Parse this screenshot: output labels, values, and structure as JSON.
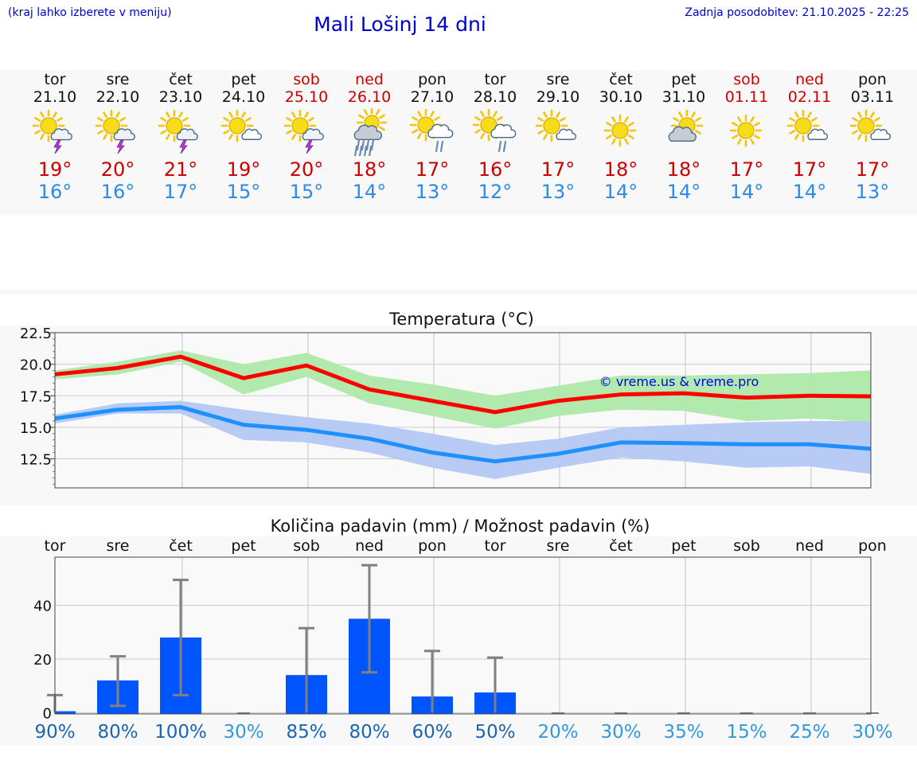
{
  "header": {
    "left_note": "(kraj lahko izberete v meniju)",
    "title": "Mali Lošinj 14 dni",
    "updated": "Zadnja posodobitev: 21.10.2025 - 22:25"
  },
  "days": [
    {
      "name": "tor",
      "date": "21.10",
      "weekend": false,
      "icon": "sun-cloud-lightning-icon",
      "tmax": "19°",
      "tmin": "16°"
    },
    {
      "name": "sre",
      "date": "22.10",
      "weekend": false,
      "icon": "sun-cloud-lightning-icon",
      "tmax": "20°",
      "tmin": "16°"
    },
    {
      "name": "čet",
      "date": "23.10",
      "weekend": false,
      "icon": "sun-cloud-lightning-icon",
      "tmax": "21°",
      "tmin": "17°"
    },
    {
      "name": "pet",
      "date": "24.10",
      "weekend": false,
      "icon": "sun-small-cloud-icon",
      "tmax": "19°",
      "tmin": "15°"
    },
    {
      "name": "sob",
      "date": "25.10",
      "weekend": true,
      "icon": "sun-cloud-lightning-icon",
      "tmax": "20°",
      "tmin": "15°"
    },
    {
      "name": "ned",
      "date": "26.10",
      "weekend": true,
      "icon": "cloud-heavy-rain-icon",
      "tmax": "18°",
      "tmin": "14°"
    },
    {
      "name": "pon",
      "date": "27.10",
      "weekend": false,
      "icon": "sun-cloud-rain-icon",
      "tmax": "17°",
      "tmin": "13°"
    },
    {
      "name": "tor",
      "date": "28.10",
      "weekend": false,
      "icon": "sun-cloud-rain-icon",
      "tmax": "16°",
      "tmin": "12°"
    },
    {
      "name": "sre",
      "date": "29.10",
      "weekend": false,
      "icon": "sun-small-cloud-icon",
      "tmax": "17°",
      "tmin": "13°"
    },
    {
      "name": "čet",
      "date": "30.10",
      "weekend": false,
      "icon": "sun-icon",
      "tmax": "18°",
      "tmin": "14°"
    },
    {
      "name": "pet",
      "date": "31.10",
      "weekend": false,
      "icon": "sun-behind-cloud-icon",
      "tmax": "18°",
      "tmin": "14°"
    },
    {
      "name": "sob",
      "date": "01.11",
      "weekend": true,
      "icon": "sun-icon",
      "tmax": "17°",
      "tmin": "14°"
    },
    {
      "name": "ned",
      "date": "02.11",
      "weekend": true,
      "icon": "sun-small-cloud-icon",
      "tmax": "17°",
      "tmin": "14°"
    },
    {
      "name": "pon",
      "date": "03.11",
      "weekend": false,
      "icon": "sun-small-cloud-icon",
      "tmax": "17°",
      "tmin": "13°"
    }
  ],
  "colors": {
    "max_line": "#ff0000",
    "max_band": "#aee8a8",
    "min_line": "#1e90ff",
    "min_band": "#b4c8f4",
    "precip_bar": "#0055ff",
    "error_bar": "#808080",
    "grid": "#cccccc",
    "plot_bg": "#f9f9f9",
    "prob_high": "#1a66b3",
    "prob_low": "#3399dd"
  },
  "chart_data": [
    {
      "type": "line",
      "title": "Temperatura (°C)",
      "watermark": "© vreme.us & vreme.pro",
      "x": [
        0,
        1,
        2,
        3,
        4,
        5,
        6,
        7,
        8,
        9,
        10,
        11,
        12,
        13
      ],
      "ylim": [
        10.2,
        22.5
      ],
      "yticks": [
        22.5,
        20.0,
        17.5,
        15.0,
        12.5
      ],
      "ytick_labels": [
        "22.5",
        "20.0",
        "17.5",
        "15.0",
        "12.5"
      ],
      "series": [
        {
          "name": "max",
          "values": [
            19.2,
            19.7,
            20.6,
            18.9,
            19.9,
            18.0,
            17.1,
            16.2,
            17.1,
            17.6,
            17.7,
            17.35,
            17.5,
            17.45
          ],
          "band_upper": [
            19.5,
            20.2,
            21.1,
            20.0,
            20.9,
            19.1,
            18.4,
            17.5,
            18.3,
            19.1,
            19.1,
            19.2,
            19.3,
            19.5
          ],
          "band_lower": [
            18.8,
            19.2,
            20.2,
            17.6,
            19.0,
            16.9,
            15.9,
            14.9,
            15.9,
            16.4,
            16.3,
            15.5,
            15.7,
            15.4
          ]
        },
        {
          "name": "min",
          "values": [
            15.7,
            16.4,
            16.6,
            15.2,
            14.8,
            14.1,
            13.0,
            12.3,
            12.9,
            13.8,
            13.75,
            13.65,
            13.65,
            13.3
          ],
          "band_upper": [
            16.0,
            16.9,
            17.1,
            16.4,
            15.8,
            15.3,
            14.5,
            13.6,
            14.1,
            15.0,
            15.2,
            15.4,
            15.5,
            15.5
          ],
          "band_lower": [
            15.3,
            16.1,
            16.1,
            14.0,
            13.8,
            13.0,
            11.8,
            10.9,
            11.8,
            12.6,
            12.3,
            11.8,
            11.9,
            11.3
          ]
        }
      ]
    },
    {
      "type": "bar",
      "title": "Količina padavin (mm) / Možnost padavin (%)",
      "categories": [
        "tor",
        "sre",
        "čet",
        "pet",
        "sob",
        "ned",
        "pon",
        "tor",
        "sre",
        "čet",
        "pet",
        "sob",
        "ned",
        "pon"
      ],
      "values": [
        0.5,
        12,
        28,
        0,
        14,
        35,
        6,
        7.5,
        0,
        0,
        0,
        0,
        0,
        0
      ],
      "err_low": [
        0,
        2.5,
        6.5,
        0,
        0,
        15,
        0,
        0,
        0,
        0,
        0,
        0,
        0,
        0
      ],
      "err_high": [
        6.5,
        21,
        49.5,
        0,
        31.5,
        55,
        23,
        20.5,
        0,
        0,
        0,
        0,
        0,
        0
      ],
      "ylim": [
        -0.5,
        58
      ],
      "yticks": [
        40,
        20,
        0
      ],
      "ytick_labels": [
        "40",
        "20",
        "0"
      ],
      "probabilities": [
        "90%",
        "80%",
        "100%",
        "30%",
        "85%",
        "80%",
        "60%",
        "50%",
        "20%",
        "30%",
        "35%",
        "15%",
        "25%",
        "30%"
      ],
      "probabilities_high": [
        true,
        true,
        true,
        false,
        true,
        true,
        true,
        true,
        false,
        false,
        false,
        false,
        false,
        false
      ]
    }
  ]
}
